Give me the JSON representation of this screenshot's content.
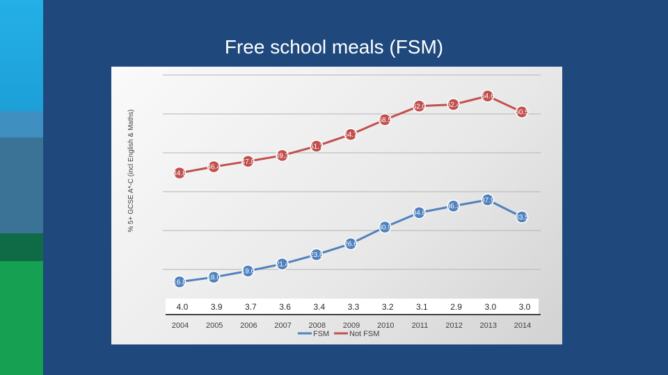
{
  "slide": {
    "title": "Free school meals (FSM)"
  },
  "chart_data": {
    "type": "line",
    "title": "Free school meals (FSM)",
    "ylabel": "% 5+ GCSE A*-C (incl English & Maths)",
    "categories": [
      "2004",
      "2005",
      "2006",
      "2007",
      "2008",
      "2009",
      "2010",
      "2011",
      "2012",
      "2013",
      "2014"
    ],
    "series": [
      {
        "name": "FSM",
        "color": "#4f81bd",
        "values": [
          16.8,
          18.0,
          19.6,
          21.4,
          23.8,
          26.6,
          30.9,
          34.6,
          36.3,
          37.9,
          33.5
        ],
        "labels": [
          "16.8",
          "18.0",
          "19.6",
          "21.4",
          "23.8",
          "26.6",
          "30.9",
          "34.6",
          "36.3",
          "37.9",
          "33.5"
        ]
      },
      {
        "name": "Not FSM",
        "color": "#c0504d",
        "values": [
          44.8,
          46.4,
          47.8,
          49.3,
          51.7,
          54.7,
          58.5,
          62.0,
          62.4,
          64.6,
          60.5
        ],
        "labels": [
          "44.8",
          "46.4",
          "47.8",
          "49.3",
          "51.7",
          "54.7",
          "58.5",
          "62.0",
          "62.4",
          "64.6",
          "60.5"
        ]
      }
    ],
    "gap_values": [
      "4.0",
      "3.9",
      "3.7",
      "3.6",
      "3.4",
      "3.3",
      "3.2",
      "3.1",
      "2.9",
      "3.0",
      "3.0"
    ],
    "legend": [
      "FSM",
      "Not FSM"
    ],
    "ylim": [
      15,
      70
    ],
    "grid": true
  },
  "colors": {
    "background": "#1f497d",
    "fsm": "#4f81bd",
    "not_fsm": "#c0504d"
  }
}
